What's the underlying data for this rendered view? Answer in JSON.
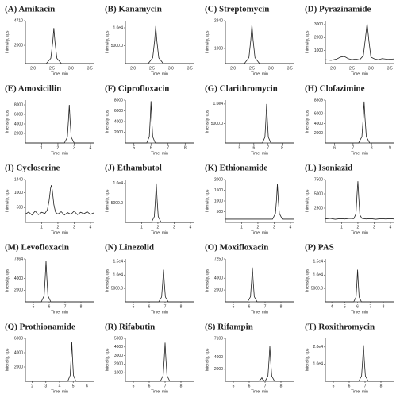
{
  "chart_data": [
    {
      "type": "line",
      "title": "(A) Amikacin",
      "xlabel": "Time, min",
      "ylabel": "Intensity, cps",
      "color": "#222",
      "xlim": [
        1.8,
        3.6
      ],
      "xticks": [
        {
          "value": 2,
          "label": "2.0"
        },
        {
          "value": 2.5,
          "label": "2.5"
        },
        {
          "value": 3,
          "label": "3.0"
        },
        {
          "value": 3.5,
          "label": "3.5"
        }
      ],
      "ylim": [
        0,
        4710
      ],
      "yticks": [
        2000,
        4710
      ],
      "x": [
        1.8,
        2.35,
        2.47,
        2.52,
        2.55,
        2.58,
        2.63,
        2.75,
        3.6
      ],
      "values": [
        0,
        0,
        580,
        2340,
        3900,
        2340,
        580,
        0,
        0
      ]
    },
    {
      "type": "line",
      "title": "(B) Kanamycin",
      "xlabel": "Time, min",
      "ylabel": "Intensity, cps",
      "color": "#222",
      "xlim": [
        1.8,
        3.6
      ],
      "xticks": [
        {
          "value": 2,
          "label": "2.0"
        },
        {
          "value": 2.5,
          "label": "2.5"
        },
        {
          "value": 3,
          "label": "3.0"
        },
        {
          "value": 3.5,
          "label": "3.5"
        }
      ],
      "ylim": [
        0,
        12000
      ],
      "yticks": [
        {
          "value": 5000,
          "label": "5000.0"
        },
        {
          "value": 10000,
          "label": "1.0e4"
        }
      ],
      "x": [
        1.8,
        2.4,
        2.52,
        2.57,
        2.6,
        2.63,
        2.68,
        2.8,
        3.6
      ],
      "values": [
        0,
        0,
        1600,
        6300,
        10500,
        6300,
        1600,
        0,
        0
      ]
    },
    {
      "type": "line",
      "title": "(C) Streptomycin",
      "xlabel": "Time, min",
      "ylabel": "Intensity, cps",
      "color": "#222",
      "xlim": [
        1.8,
        3.6
      ],
      "xticks": [
        {
          "value": 2,
          "label": "2.0"
        },
        {
          "value": 2.5,
          "label": "2.5"
        },
        {
          "value": 3,
          "label": "3.0"
        },
        {
          "value": 3.5,
          "label": "3.5"
        }
      ],
      "ylim": [
        0,
        2840
      ],
      "yticks": [
        1000,
        2840
      ],
      "x": [
        1.8,
        2.3,
        2.42,
        2.47,
        2.5,
        2.53,
        2.58,
        2.7,
        3.6
      ],
      "values": [
        0,
        0,
        390,
        1560,
        2600,
        1560,
        390,
        0,
        0
      ]
    },
    {
      "type": "line",
      "title": "(D) Pyrazinamide",
      "xlabel": "Time, min",
      "ylabel": "Intensity, cps",
      "color": "#222",
      "xlim": [
        1.8,
        3.6
      ],
      "xticks": [
        {
          "value": 2,
          "label": "2.0"
        },
        {
          "value": 2.5,
          "label": "2.5"
        },
        {
          "value": 3,
          "label": "3.0"
        },
        {
          "value": 3.5,
          "label": "3.5"
        }
      ],
      "ylim": [
        0,
        3300
      ],
      "yticks": [
        1000,
        2000,
        3000
      ],
      "x": [
        1.8,
        1.95,
        2.1,
        2.2,
        2.3,
        2.4,
        2.5,
        2.6,
        2.7,
        2.8,
        2.85,
        2.9,
        2.95,
        3.0,
        3.1,
        3.2,
        3.3,
        3.45,
        3.6
      ],
      "values": [
        300,
        250,
        350,
        500,
        550,
        380,
        300,
        350,
        280,
        600,
        1800,
        3100,
        1700,
        500,
        350,
        300,
        380,
        320,
        350
      ]
    },
    {
      "type": "line",
      "title": "(E) Amoxicillin",
      "xlabel": "Time, min",
      "ylabel": "Intensity, cps",
      "color": "#222",
      "xlim": [
        0,
        4.2
      ],
      "xticks": [
        1,
        2,
        3,
        4
      ],
      "ylim": [
        0,
        9000
      ],
      "yticks": [
        2000,
        4000,
        6000,
        8000
      ],
      "x": [
        0,
        2.4,
        2.58,
        2.65,
        2.7,
        2.75,
        2.82,
        3.0,
        4.2
      ],
      "values": [
        0,
        0,
        1200,
        4800,
        8000,
        4800,
        1200,
        0,
        0
      ]
    },
    {
      "type": "line",
      "title": "(F) Ciprofloxacin",
      "xlabel": "Time, min",
      "ylabel": "Intensity, cps",
      "color": "#222",
      "xlim": [
        4.5,
        8.5
      ],
      "xticks": [
        5,
        6,
        7,
        8
      ],
      "ylim": [
        0,
        8000
      ],
      "yticks": [
        2000,
        4000,
        6000,
        8000
      ],
      "x": [
        4.5,
        5.75,
        5.9,
        5.96,
        6.0,
        6.04,
        6.1,
        6.25,
        8.5
      ],
      "values": [
        0,
        0,
        1170,
        4680,
        7800,
        4680,
        1170,
        0,
        0
      ]
    },
    {
      "type": "line",
      "title": "(G) Clarithromycin",
      "xlabel": "Time, min",
      "ylabel": "Intensity, cps",
      "color": "#222",
      "xlim": [
        4,
        8.8
      ],
      "xticks": [
        5,
        6,
        7,
        8
      ],
      "ylim": [
        0,
        11000
      ],
      "yticks": [
        {
          "value": 5000,
          "label": "5000.0"
        },
        {
          "value": 10000,
          "label": "1.0e4"
        }
      ],
      "x": [
        4,
        6.6,
        6.78,
        6.85,
        6.9,
        6.95,
        7.02,
        7.2,
        8.8
      ],
      "values": [
        0,
        0,
        1500,
        6000,
        10000,
        6000,
        1500,
        0,
        0
      ]
    },
    {
      "type": "line",
      "title": "(H) Clofazimine",
      "xlabel": "Time, min",
      "ylabel": "Intensity, cps",
      "color": "#222",
      "xlim": [
        5.5,
        9.2
      ],
      "xticks": [
        6,
        7,
        8,
        9
      ],
      "ylim": [
        0,
        8809
      ],
      "yticks": [
        2000,
        4000,
        6000,
        8809
      ],
      "x": [
        5.5,
        7.3,
        7.48,
        7.55,
        7.6,
        7.65,
        7.72,
        7.9,
        9.2
      ],
      "values": [
        0,
        0,
        1280,
        5100,
        8500,
        5100,
        1280,
        0,
        0
      ]
    },
    {
      "type": "line",
      "title": "(I) Cycloserine",
      "xlabel": "Time, min",
      "ylabel": "Intensity, cps",
      "color": "#222",
      "xlim": [
        0,
        4.2
      ],
      "xticks": [
        1,
        2,
        3,
        4
      ],
      "ylim": [
        0,
        1440
      ],
      "yticks": [
        500,
        1000,
        1440
      ],
      "x": [
        0,
        0.2,
        0.4,
        0.6,
        0.8,
        1.0,
        1.2,
        1.35,
        1.45,
        1.55,
        1.6,
        1.65,
        1.75,
        1.85,
        2.0,
        2.2,
        2.4,
        2.6,
        2.8,
        3.0,
        3.2,
        3.4,
        3.6,
        3.8,
        4.0,
        4.2
      ],
      "values": [
        280,
        350,
        250,
        380,
        260,
        340,
        300,
        420,
        700,
        1150,
        1250,
        1100,
        600,
        350,
        280,
        360,
        250,
        330,
        270,
        380,
        260,
        340,
        290,
        360,
        270,
        320
      ]
    },
    {
      "type": "line",
      "title": "(J) Ethambutol",
      "xlabel": "Time, min",
      "ylabel": "Intensity, cps",
      "color": "#222",
      "xlim": [
        0,
        4.2
      ],
      "xticks": [
        1,
        2,
        3,
        4
      ],
      "ylim": [
        0,
        11000
      ],
      "yticks": [
        {
          "value": 5000,
          "label": "5000.0"
        },
        {
          "value": 10000,
          "label": "1.0e4"
        }
      ],
      "x": [
        0,
        1.6,
        1.78,
        1.85,
        1.9,
        1.95,
        2.02,
        2.2,
        4.2
      ],
      "values": [
        0,
        0,
        1500,
        6000,
        10000,
        6000,
        1500,
        0,
        0
      ]
    },
    {
      "type": "line",
      "title": "(K) Ethionamide",
      "xlabel": "Time, min",
      "ylabel": "Intensity, cps",
      "color": "#222",
      "xlim": [
        0,
        4.2
      ],
      "xticks": [
        1,
        2,
        3,
        4
      ],
      "ylim": [
        0,
        2000
      ],
      "yticks": [
        500,
        1000,
        1500,
        2000
      ],
      "x": [
        0,
        2.9,
        3.08,
        3.15,
        3.2,
        3.25,
        3.32,
        3.5,
        4.2
      ],
      "values": [
        150,
        150,
        420,
        1100,
        1800,
        1100,
        420,
        150,
        150
      ]
    },
    {
      "type": "line",
      "title": "(L) Isoniazid",
      "xlabel": "Time, min",
      "ylabel": "Intensity, cps",
      "color": "#222",
      "xlim": [
        0,
        4.2
      ],
      "xticks": [
        1,
        2,
        3,
        4
      ],
      "ylim": [
        0,
        7500
      ],
      "yticks": [
        2500,
        5000,
        7500
      ],
      "x": [
        0,
        0.3,
        0.6,
        0.9,
        1.2,
        1.5,
        1.75,
        1.88,
        1.95,
        2.0,
        2.05,
        2.12,
        2.25,
        2.5,
        2.8,
        3.1,
        3.4,
        3.7,
        4.0,
        4.2
      ],
      "values": [
        600,
        700,
        550,
        650,
        600,
        700,
        650,
        1500,
        5000,
        7200,
        4500,
        1300,
        700,
        600,
        650,
        550,
        650,
        600,
        650,
        600
      ]
    },
    {
      "type": "line",
      "title": "(M) Levofloxacin",
      "xlabel": "Time, min",
      "ylabel": "Intensity, cps",
      "color": "#222",
      "xlim": [
        4.5,
        8.8
      ],
      "xticks": [
        5,
        6,
        7,
        8
      ],
      "ylim": [
        0,
        7364
      ],
      "yticks": [
        2000,
        4000,
        7364
      ],
      "x": [
        4.5,
        5.5,
        5.68,
        5.75,
        5.8,
        5.85,
        5.92,
        6.1,
        8.8
      ],
      "values": [
        0,
        0,
        1050,
        4200,
        7000,
        4200,
        1050,
        0,
        0
      ]
    },
    {
      "type": "line",
      "title": "(N) Linezolid",
      "xlabel": "Time, min",
      "ylabel": "Intensity, cps",
      "color": "#222",
      "xlim": [
        4.5,
        8.8
      ],
      "xticks": [
        5,
        6,
        7,
        8
      ],
      "ylim": [
        0,
        16000
      ],
      "yticks": [
        {
          "value": 5000,
          "label": "5000.0"
        },
        {
          "value": 10000,
          "label": "1.0e4"
        },
        {
          "value": 15000,
          "label": "1.5e4"
        }
      ],
      "x": [
        4.5,
        6.6,
        6.78,
        6.85,
        6.9,
        6.95,
        7.02,
        7.2,
        8.8
      ],
      "values": [
        0,
        0,
        1800,
        7200,
        12000,
        7200,
        1800,
        0,
        0
      ]
    },
    {
      "type": "line",
      "title": "(O) Moxifloxacin",
      "xlabel": "Time, min",
      "ylabel": "Intensity, cps",
      "color": "#222",
      "xlim": [
        4.5,
        8.8
      ],
      "xticks": [
        5,
        6,
        7,
        8
      ],
      "ylim": [
        0,
        7250
      ],
      "yticks": [
        2000,
        4000,
        7250
      ],
      "x": [
        4.5,
        5.9,
        6.08,
        6.15,
        6.2,
        6.25,
        6.32,
        6.5,
        8.8
      ],
      "values": [
        0,
        0,
        870,
        3480,
        5800,
        3480,
        870,
        0,
        0
      ]
    },
    {
      "type": "line",
      "title": "(P) PAS",
      "xlabel": "Time, min",
      "ylabel": "Intensity, cps",
      "color": "#222",
      "xlim": [
        3.5,
        8.8
      ],
      "xticks": [
        4,
        5,
        6,
        7,
        8
      ],
      "ylim": [
        0,
        16000
      ],
      "yticks": [
        {
          "value": 5000,
          "label": "5000.0"
        },
        {
          "value": 10000,
          "label": "1.0e4"
        },
        {
          "value": 15000,
          "label": "1.5e4"
        }
      ],
      "x": [
        3.5,
        5.7,
        5.88,
        5.95,
        6.0,
        6.05,
        6.12,
        6.3,
        8.8
      ],
      "values": [
        0,
        0,
        1800,
        7200,
        12000,
        7200,
        1800,
        0,
        0
      ]
    },
    {
      "type": "line",
      "title": "(Q) Prothionamide",
      "xlabel": "Time, min",
      "ylabel": "Intensity, cps",
      "color": "#222",
      "xlim": [
        1.5,
        6.5
      ],
      "xticks": [
        2,
        3,
        4,
        5,
        6
      ],
      "ylim": [
        0,
        6000
      ],
      "yticks": [
        2000,
        4000,
        6000
      ],
      "x": [
        1.5,
        4.6,
        4.78,
        4.85,
        4.9,
        4.95,
        5.02,
        5.2,
        6.5
      ],
      "values": [
        0,
        0,
        830,
        3300,
        5500,
        3300,
        830,
        0,
        0
      ]
    },
    {
      "type": "line",
      "title": "(R) Rifabutin",
      "xlabel": "Time, min",
      "ylabel": "Intensity, cps",
      "color": "#222",
      "xlim": [
        4.5,
        8.8
      ],
      "xticks": [
        5,
        6,
        7,
        8
      ],
      "ylim": [
        0,
        5000
      ],
      "yticks": [
        1000,
        2000,
        3000,
        4000,
        5000
      ],
      "x": [
        4.5,
        6.7,
        6.88,
        6.95,
        7.0,
        7.05,
        7.12,
        7.3,
        8.8
      ],
      "values": [
        0,
        0,
        680,
        2700,
        4500,
        2700,
        680,
        0,
        0
      ]
    },
    {
      "type": "line",
      "title": "(S) Rifampin",
      "xlabel": "Time, min",
      "ylabel": "Intensity, cps",
      "color": "#222",
      "xlim": [
        4.5,
        8.8
      ],
      "xticks": [
        5,
        6,
        7,
        8
      ],
      "ylim": [
        0,
        7100
      ],
      "yticks": [
        2000,
        4000,
        7100
      ],
      "x": [
        4.5,
        6.6,
        6.75,
        6.8,
        6.85,
        7.0,
        7.18,
        7.25,
        7.3,
        7.35,
        7.42,
        7.6,
        8.8
      ],
      "values": [
        0,
        0,
        400,
        600,
        300,
        0,
        870,
        3480,
        5800,
        3480,
        870,
        0,
        0
      ]
    },
    {
      "type": "line",
      "title": "(T) Roxithromycin",
      "xlabel": "Time, min",
      "ylabel": "Intensity, cps",
      "color": "#222",
      "xlim": [
        4.5,
        8.8
      ],
      "xticks": [
        5,
        6,
        7,
        8
      ],
      "ylim": [
        0,
        25000
      ],
      "yticks": [
        {
          "value": 10000,
          "label": "1.0e4"
        },
        {
          "value": 20000,
          "label": "2.0e4"
        }
      ],
      "x": [
        4.5,
        6.6,
        6.78,
        6.85,
        6.9,
        6.95,
        7.02,
        7.2,
        8.8
      ],
      "values": [
        0,
        0,
        3150,
        12600,
        21000,
        12600,
        3150,
        0,
        0
      ]
    }
  ]
}
